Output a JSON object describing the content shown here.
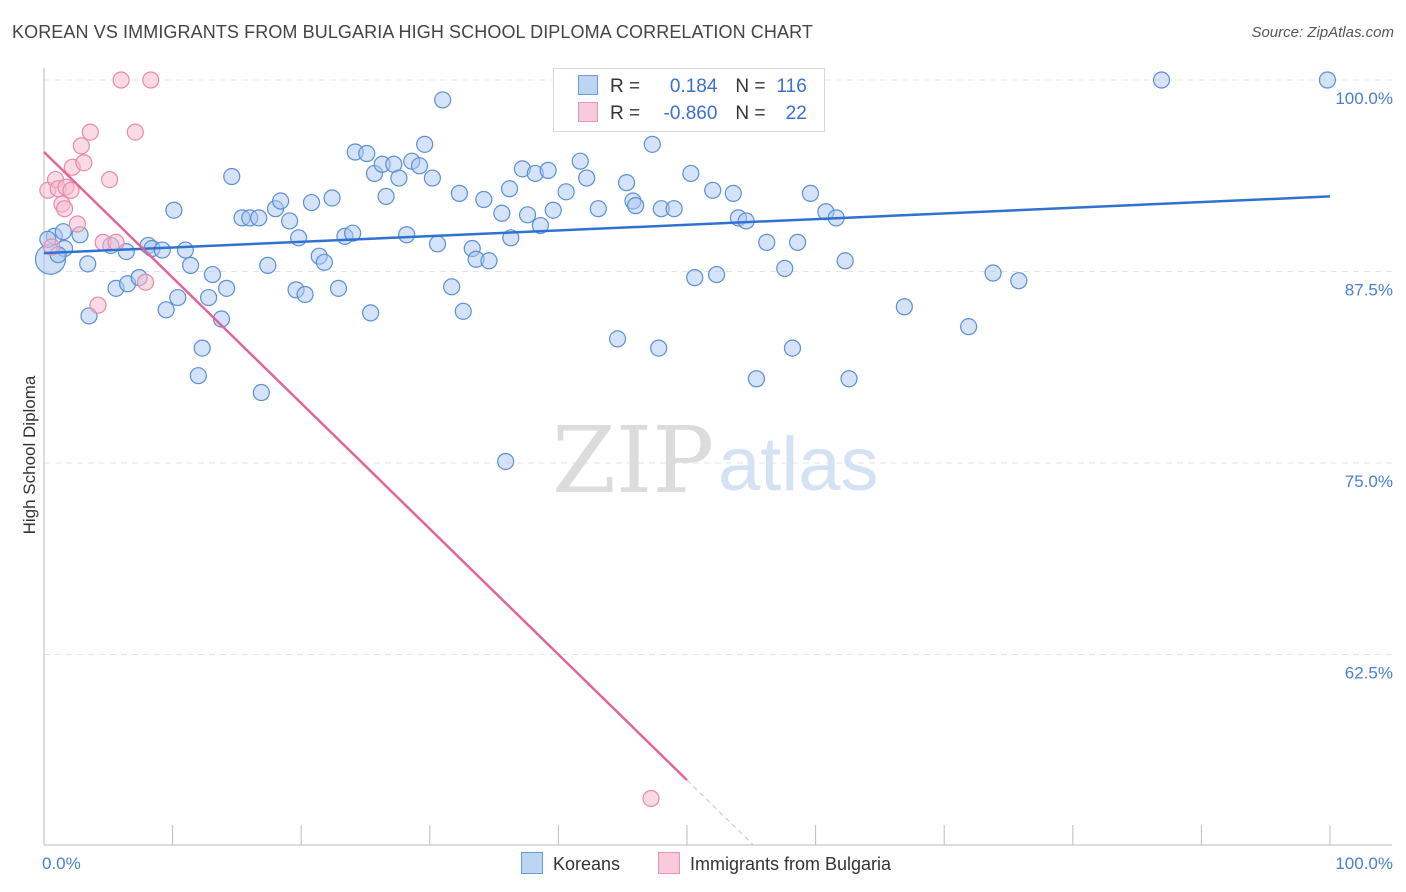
{
  "header": {
    "title": "KOREAN VS IMMIGRANTS FROM BULGARIA HIGH SCHOOL DIPLOMA CORRELATION CHART",
    "source": "Source: ZipAtlas.com"
  },
  "watermark": {
    "zip": "ZIP",
    "atlas": "atlas"
  },
  "legend": {
    "koreans": {
      "r_label": "R =",
      "r_value": "0.184",
      "n_label": "N =",
      "n_value": "116"
    },
    "bulgaria": {
      "r_label": "R =",
      "r_value": "-0.860",
      "n_label": "N =",
      "n_value": "22"
    }
  },
  "bottom_legend": {
    "koreans": "Koreans",
    "bulgaria": "Immigrants from Bulgaria"
  },
  "colors": {
    "koreans_fill": "#a9c8f0",
    "koreans_stroke": "#5b8fd6",
    "koreans_line": "#2f72d0",
    "bulgaria_fill": "#f6bcd0",
    "bulgaria_stroke": "#e88aaa",
    "bulgaria_line": "#e2659a",
    "tick": "#4a7fd0",
    "grid": "#e3e3e3"
  },
  "chart_data": {
    "type": "scatter",
    "title": "KOREAN VS IMMIGRANTS FROM BULGARIA HIGH SCHOOL DIPLOMA CORRELATION CHART",
    "xlabel": "",
    "ylabel": "High School Diploma",
    "xlim": [
      0,
      100
    ],
    "ylim": [
      51.5,
      101.5
    ],
    "x_tick_labels": [
      "0.0%",
      "100.0%"
    ],
    "y_ticks": [
      62.5,
      75.0,
      87.5,
      100.0
    ],
    "y_tick_labels": [
      "62.5%",
      "75.0%",
      "87.5%",
      "100.0%"
    ],
    "grid": "horizontal dashed",
    "series": [
      {
        "name": "Koreans",
        "points": [
          [
            0.5,
            88.3
          ],
          [
            0.8,
            89.8
          ],
          [
            1.5,
            90.1
          ],
          [
            1.6,
            89.0
          ],
          [
            2.8,
            89.9
          ],
          [
            3.5,
            84.6
          ],
          [
            3.4,
            88.0
          ],
          [
            5.2,
            89.2
          ],
          [
            6.4,
            88.8
          ],
          [
            8.1,
            89.2
          ],
          [
            5.6,
            86.4
          ],
          [
            6.5,
            86.7
          ],
          [
            7.4,
            87.1
          ],
          [
            8.4,
            89.0
          ],
          [
            9.2,
            88.9
          ],
          [
            9.5,
            85.0
          ],
          [
            10.1,
            91.5
          ],
          [
            10.4,
            85.8
          ],
          [
            11.0,
            88.9
          ],
          [
            11.4,
            87.9
          ],
          [
            12.0,
            80.7
          ],
          [
            12.3,
            82.5
          ],
          [
            12.8,
            85.8
          ],
          [
            13.1,
            87.3
          ],
          [
            13.8,
            84.4
          ],
          [
            14.2,
            86.4
          ],
          [
            14.6,
            93.7
          ],
          [
            15.4,
            91.0
          ],
          [
            16.0,
            91.0
          ],
          [
            16.7,
            91.0
          ],
          [
            16.9,
            79.6
          ],
          [
            17.4,
            87.9
          ],
          [
            18.0,
            91.6
          ],
          [
            18.4,
            92.1
          ],
          [
            19.1,
            90.8
          ],
          [
            19.6,
            86.3
          ],
          [
            19.8,
            89.7
          ],
          [
            20.3,
            86.0
          ],
          [
            20.8,
            92.0
          ],
          [
            21.4,
            88.5
          ],
          [
            21.8,
            88.1
          ],
          [
            22.4,
            92.3
          ],
          [
            22.9,
            86.4
          ],
          [
            23.4,
            89.8
          ],
          [
            24.0,
            90.0
          ],
          [
            24.2,
            95.3
          ],
          [
            25.1,
            95.2
          ],
          [
            25.4,
            84.8
          ],
          [
            25.7,
            93.9
          ],
          [
            26.3,
            94.5
          ],
          [
            26.6,
            92.4
          ],
          [
            27.2,
            94.5
          ],
          [
            27.6,
            93.6
          ],
          [
            28.2,
            89.9
          ],
          [
            28.6,
            94.7
          ],
          [
            29.2,
            94.4
          ],
          [
            29.6,
            95.8
          ],
          [
            30.2,
            93.6
          ],
          [
            30.6,
            89.3
          ],
          [
            31.0,
            98.7
          ],
          [
            31.7,
            86.5
          ],
          [
            32.3,
            92.6
          ],
          [
            32.6,
            84.9
          ],
          [
            33.3,
            89.0
          ],
          [
            33.6,
            88.3
          ],
          [
            34.2,
            92.2
          ],
          [
            34.6,
            88.2
          ],
          [
            35.6,
            91.3
          ],
          [
            36.3,
            89.7
          ],
          [
            36.2,
            92.9
          ],
          [
            37.2,
            94.2
          ],
          [
            37.6,
            91.2
          ],
          [
            38.2,
            93.9
          ],
          [
            38.6,
            90.5
          ],
          [
            39.2,
            94.1
          ],
          [
            39.6,
            91.5
          ],
          [
            40.6,
            92.7
          ],
          [
            41.7,
            94.7
          ],
          [
            42.2,
            93.6
          ],
          [
            43.1,
            91.6
          ],
          [
            44.6,
            83.1
          ],
          [
            45.3,
            93.3
          ],
          [
            45.8,
            92.1
          ],
          [
            46.0,
            91.8
          ],
          [
            47.3,
            95.8
          ],
          [
            47.8,
            82.5
          ],
          [
            48.0,
            91.6
          ],
          [
            49.0,
            91.6
          ],
          [
            50.3,
            93.9
          ],
          [
            50.6,
            87.1
          ],
          [
            52.0,
            92.8
          ],
          [
            52.3,
            87.3
          ],
          [
            53.6,
            92.6
          ],
          [
            54.0,
            91.0
          ],
          [
            54.6,
            90.8
          ],
          [
            55.4,
            80.5
          ],
          [
            56.2,
            89.4
          ],
          [
            57.6,
            87.7
          ],
          [
            58.2,
            82.5
          ],
          [
            58.6,
            89.4
          ],
          [
            59.6,
            92.6
          ],
          [
            60.8,
            91.4
          ],
          [
            61.6,
            91.0
          ],
          [
            62.3,
            88.2
          ],
          [
            62.6,
            80.5
          ],
          [
            66.9,
            85.2
          ],
          [
            71.9,
            83.9
          ],
          [
            73.8,
            87.4
          ],
          [
            75.8,
            86.9
          ],
          [
            35.9,
            75.1
          ],
          [
            41.3,
            100.0
          ],
          [
            51.2,
            100.0
          ],
          [
            86.9,
            100.0
          ],
          [
            99.8,
            100.0
          ],
          [
            0.3,
            89.6
          ],
          [
            1.1,
            88.6
          ]
        ]
      },
      {
        "name": "Immigrants from Bulgaria",
        "points": [
          [
            0.3,
            92.8
          ],
          [
            0.6,
            89.1
          ],
          [
            0.9,
            93.5
          ],
          [
            1.1,
            92.9
          ],
          [
            1.4,
            91.9
          ],
          [
            1.7,
            93.0
          ],
          [
            2.2,
            94.3
          ],
          [
            2.6,
            90.6
          ],
          [
            2.9,
            95.7
          ],
          [
            3.1,
            94.6
          ],
          [
            3.6,
            96.6
          ],
          [
            4.2,
            85.3
          ],
          [
            4.6,
            89.4
          ],
          [
            5.1,
            93.5
          ],
          [
            5.6,
            89.4
          ],
          [
            6.0,
            100.0
          ],
          [
            7.1,
            96.6
          ],
          [
            7.9,
            86.8
          ],
          [
            8.3,
            100.0
          ],
          [
            47.2,
            53.1
          ],
          [
            1.6,
            91.6
          ],
          [
            2.1,
            92.8
          ]
        ]
      }
    ],
    "trend_lines": [
      {
        "name": "Koreans",
        "x": [
          0,
          100
        ],
        "y": [
          88.7,
          92.4
        ]
      },
      {
        "name": "Immigrants from Bulgaria",
        "x": [
          0,
          50
        ],
        "y": [
          95.3,
          54.3
        ],
        "dashed_extension_to_x": 55.2
      }
    ]
  }
}
